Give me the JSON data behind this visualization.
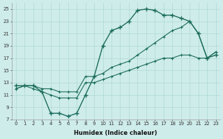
{
  "xlabel": "Humidex (Indice chaleur)",
  "bg_color": "#ceecea",
  "grid_color": "#add8d4",
  "line_color": "#1a6b5a",
  "xlim": [
    -0.5,
    23.5
  ],
  "ylim": [
    7,
    26
  ],
  "xticks": [
    0,
    1,
    2,
    3,
    4,
    5,
    6,
    7,
    8,
    9,
    10,
    11,
    12,
    13,
    14,
    15,
    16,
    17,
    18,
    19,
    20,
    21,
    22,
    23
  ],
  "yticks": [
    7,
    9,
    11,
    13,
    15,
    17,
    19,
    21,
    23,
    25
  ],
  "line1_x": [
    0,
    1,
    2,
    3,
    4,
    5,
    6,
    7,
    8,
    9,
    10,
    11,
    12,
    13,
    14,
    15,
    16,
    17,
    18,
    19,
    20,
    21,
    22,
    23
  ],
  "line1_y": [
    12.5,
    12.5,
    12.5,
    11.5,
    8.0,
    8.0,
    7.5,
    8.0,
    11.0,
    14.0,
    19.0,
    21.5,
    22.0,
    23.0,
    24.8,
    25.0,
    24.8,
    24.0,
    24.0,
    23.5,
    23.0,
    21.0,
    17.0,
    17.5
  ],
  "line2_x": [
    0,
    1,
    2,
    3,
    4,
    5,
    6,
    7,
    8,
    9,
    10,
    11,
    12,
    13,
    14,
    15,
    16,
    17,
    18,
    19,
    20,
    21,
    22,
    23
  ],
  "line2_y": [
    12.0,
    12.5,
    12.0,
    11.5,
    11.0,
    10.5,
    10.5,
    10.5,
    13.0,
    13.0,
    13.5,
    14.0,
    14.5,
    15.0,
    15.5,
    16.0,
    16.5,
    17.0,
    17.0,
    17.5,
    17.5,
    17.0,
    17.0,
    18.0
  ],
  "line3_x": [
    0,
    1,
    2,
    3,
    4,
    5,
    6,
    7,
    8,
    9,
    10,
    11,
    12,
    13,
    14,
    15,
    16,
    17,
    18,
    19,
    20,
    21,
    22,
    23
  ],
  "line3_y": [
    12.0,
    12.5,
    12.5,
    12.0,
    12.0,
    11.5,
    11.5,
    11.5,
    14.0,
    14.0,
    14.5,
    15.5,
    16.0,
    16.5,
    17.5,
    18.5,
    19.5,
    20.5,
    21.5,
    22.0,
    23.0,
    21.0,
    17.0,
    18.0
  ]
}
